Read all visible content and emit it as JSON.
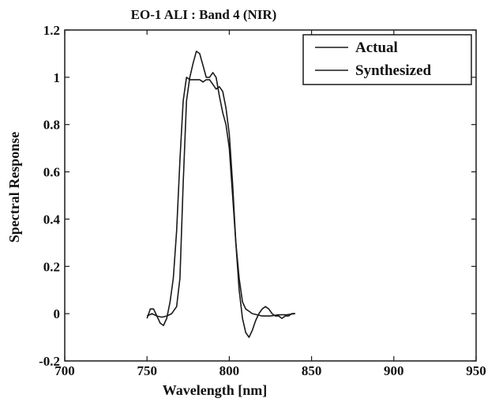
{
  "chart_data": {
    "type": "line",
    "title": "EO-1 ALI : Band 4 (NIR)",
    "xlabel": "Wavelength [nm]",
    "ylabel": "Spectral Response",
    "xlim": [
      700,
      950
    ],
    "ylim": [
      -0.2,
      1.2
    ],
    "xticks": [
      700,
      750,
      800,
      850,
      900,
      950
    ],
    "yticks": [
      -0.2,
      0,
      0.2,
      0.4,
      0.6,
      0.8,
      1,
      1.2
    ],
    "xtick_labels": [
      "700",
      "750",
      "800",
      "850",
      "900",
      "950"
    ],
    "ytick_labels": [
      "-0.2",
      "0",
      "0.2",
      "0.4",
      "0.6",
      "0.8",
      "1",
      "1.2"
    ],
    "grid": false,
    "legend_position": "top-right",
    "series": [
      {
        "name": "Actual",
        "color": "#1a1a1a",
        "x": [
          750,
          753,
          756,
          759,
          762,
          765,
          768,
          770,
          772,
          774,
          776,
          778,
          780,
          782,
          784,
          786,
          788,
          790,
          792,
          794,
          796,
          798,
          800,
          802,
          804,
          806,
          808,
          810,
          812,
          814,
          817,
          820,
          825,
          830,
          835,
          840
        ],
        "y": [
          -0.01,
          0.0,
          -0.01,
          -0.015,
          -0.01,
          0.0,
          0.03,
          0.15,
          0.55,
          0.9,
          1.0,
          1.06,
          1.11,
          1.1,
          1.05,
          1.0,
          1.0,
          1.02,
          1.0,
          0.92,
          0.85,
          0.8,
          0.7,
          0.5,
          0.3,
          0.15,
          0.05,
          0.02,
          0.01,
          0.0,
          -0.005,
          -0.01,
          -0.01,
          -0.005,
          -0.005,
          0.0
        ]
      },
      {
        "name": "Synthesized",
        "color": "#1a1a1a",
        "x": [
          750,
          752,
          754,
          756,
          758,
          760,
          762,
          764,
          766,
          768,
          770,
          772,
          774,
          776,
          778,
          780,
          782,
          784,
          786,
          788,
          790,
          792,
          794,
          796,
          798,
          800,
          802,
          804,
          806,
          808,
          810,
          812,
          814,
          816,
          818,
          820,
          822,
          824,
          826,
          828,
          830,
          832,
          834,
          836,
          838,
          840
        ],
        "y": [
          -0.02,
          0.02,
          0.02,
          -0.01,
          -0.04,
          -0.05,
          -0.02,
          0.05,
          0.15,
          0.35,
          0.65,
          0.9,
          1.0,
          0.99,
          0.99,
          0.99,
          0.99,
          0.98,
          0.99,
          0.99,
          0.97,
          0.95,
          0.96,
          0.94,
          0.87,
          0.76,
          0.55,
          0.3,
          0.1,
          -0.02,
          -0.08,
          -0.1,
          -0.07,
          -0.03,
          0.0,
          0.02,
          0.03,
          0.02,
          0.0,
          -0.01,
          -0.01,
          -0.02,
          -0.01,
          -0.01,
          0.0,
          0.0
        ]
      }
    ]
  }
}
